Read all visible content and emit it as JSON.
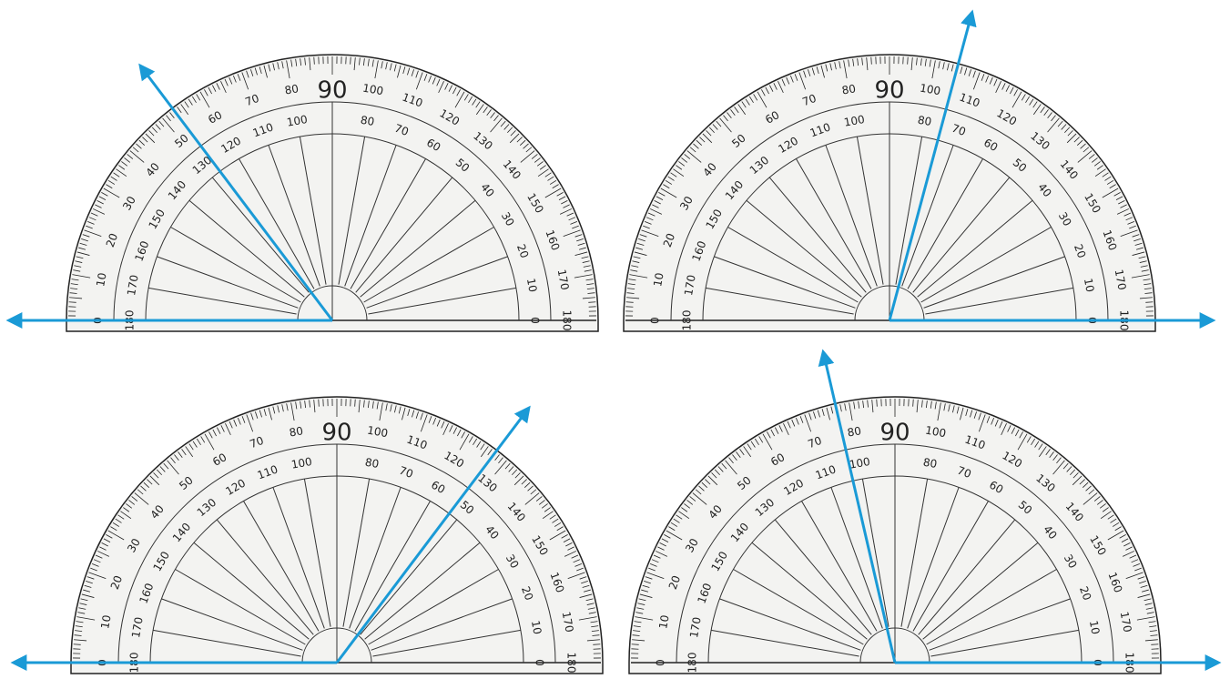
{
  "scale": {
    "labels": [
      0,
      10,
      20,
      30,
      40,
      50,
      60,
      70,
      80,
      90,
      100,
      110,
      120,
      130,
      140,
      150,
      160,
      170,
      180
    ]
  },
  "protractors": [
    {
      "ray_angle": 127,
      "baseline": "left"
    },
    {
      "ray_angle": 75,
      "baseline": "right"
    },
    {
      "ray_angle": 53,
      "baseline": "left"
    },
    {
      "ray_angle": 103,
      "baseline": "right"
    }
  ]
}
